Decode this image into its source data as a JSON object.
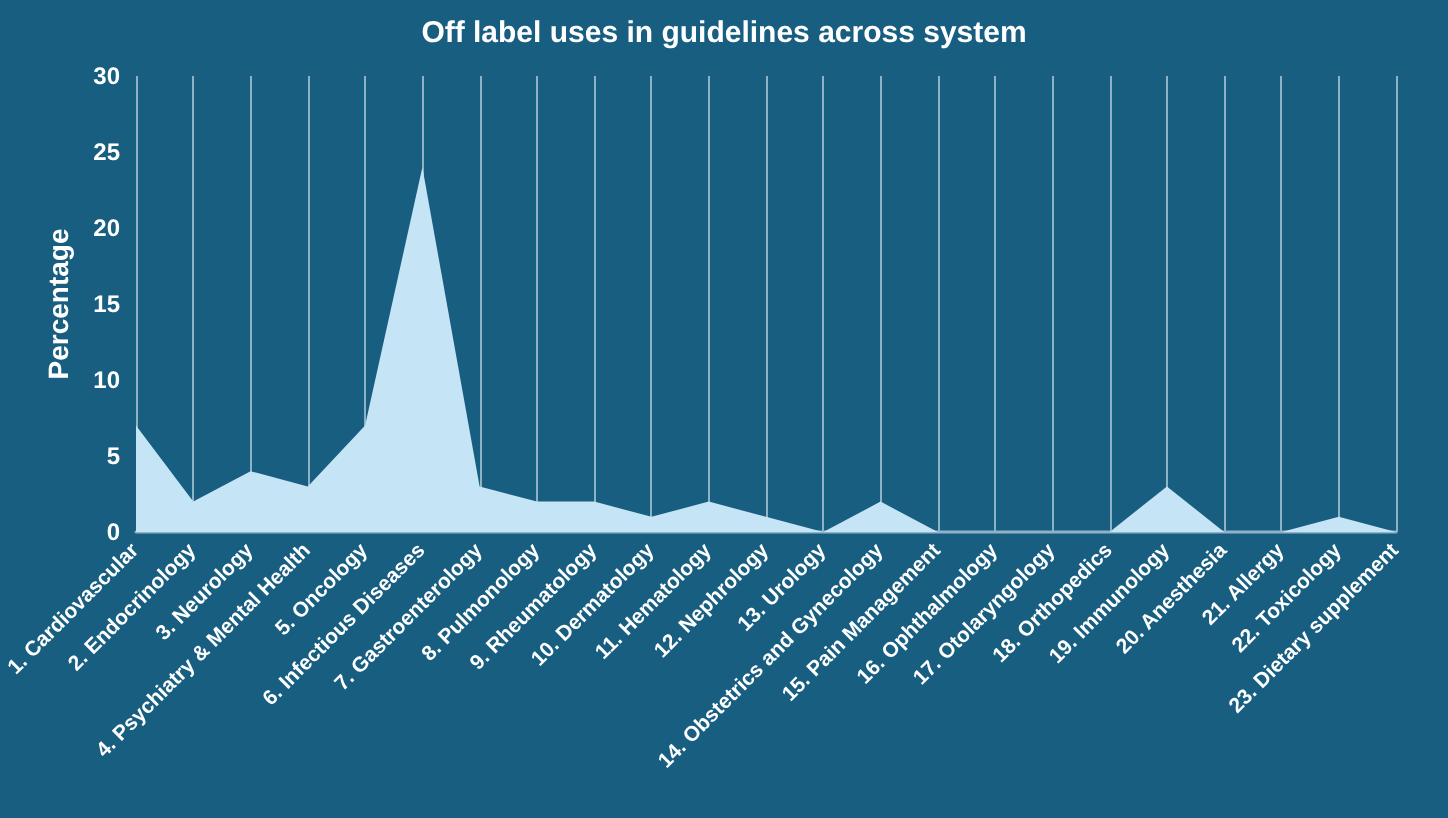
{
  "chart_data": {
    "type": "area",
    "title": "Off label uses in guidelines across system",
    "ylabel": "Percentage",
    "categories": [
      "1. Cardiovascular",
      "2. Endocrinology",
      "3. Neurology",
      "4. Psychiatry & Mental Health",
      "5. Oncology",
      "6. Infectious Diseases",
      "7. Gastroenterology",
      "8. Pulmonology",
      "9. Rheumatology",
      "10. Dermatology",
      "11. Hematology",
      "12. Nephrology",
      "13. Urology",
      "14. Obstetrics and Gynecology",
      "15. Pain Management",
      "16. Ophthalmology",
      "17. Otolaryngology",
      "18. Orthopedics",
      "19. Immunology",
      "20. Anesthesia",
      "21. Allergy",
      "22. Toxicology",
      "23. Dietary supplement"
    ],
    "values": [
      7,
      2,
      4,
      3,
      7,
      24,
      3,
      2,
      2,
      1,
      2,
      1,
      0,
      2,
      0,
      0,
      0,
      0,
      3,
      0,
      0,
      1,
      0
    ],
    "color": "#c5e4f5",
    "ylim": [
      0,
      30
    ],
    "yticks": [
      0,
      5,
      10,
      15,
      20,
      25,
      30
    ],
    "grid": "x"
  }
}
